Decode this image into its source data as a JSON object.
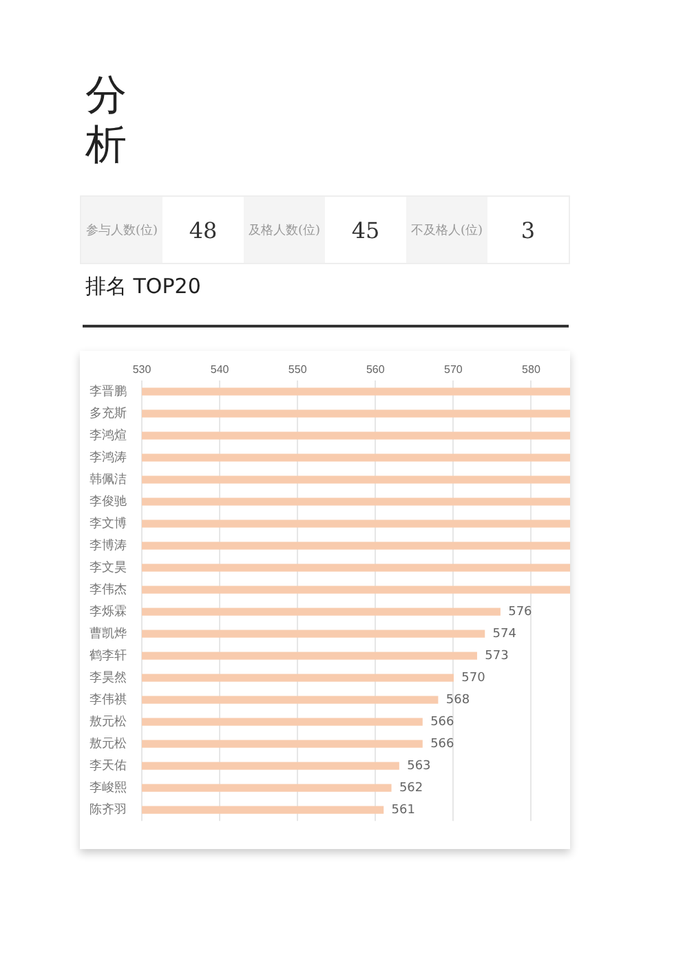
{
  "chart_data": {
    "type": "bar",
    "orientation": "horizontal",
    "title": "分析",
    "subtitle": "排名 TOP20",
    "annotations": [
      "参与人数(位)",
      "48",
      "及格人数(位)",
      "45",
      "不及格人(位)",
      "3"
    ],
    "categories": [
      "李晋鹏",
      "多充斯",
      "李鸿煊",
      "李鸿涛",
      "韩佩洁",
      "李俊驰",
      "李文博",
      "李博涛",
      "李文昊",
      "李伟杰",
      "李烁霖",
      "曹凯烨",
      "鹤李轩",
      "李昊然",
      "李伟祺",
      "敖元松",
      "敖元松",
      "李天佑",
      "李峻熙",
      "陈齐羽"
    ],
    "values": [
      585,
      585,
      585,
      585,
      585,
      585,
      585,
      585,
      585,
      585,
      576,
      574,
      573,
      570,
      568,
      566,
      566,
      563,
      562,
      561
    ],
    "value_labels": [
      null,
      null,
      null,
      null,
      null,
      null,
      null,
      null,
      null,
      null,
      "576",
      "574",
      "573",
      "570",
      "568",
      "566",
      "566",
      "563",
      "562",
      "561"
    ],
    "color": "#f8cbad",
    "xlim": [
      530,
      585
    ],
    "xticks": [
      530,
      540,
      550,
      560,
      570,
      580
    ],
    "grid": "x",
    "legend": false
  }
}
